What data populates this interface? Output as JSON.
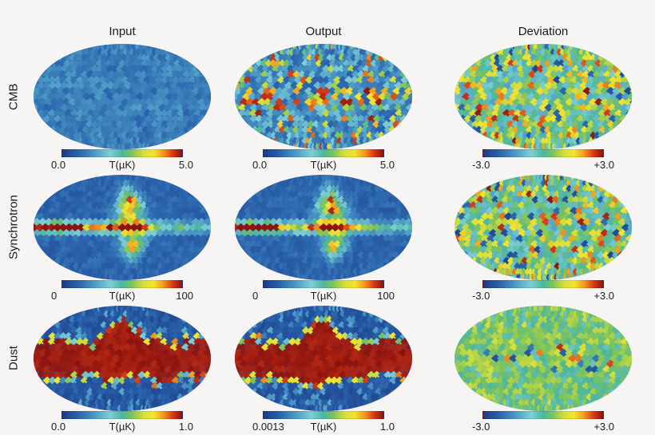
{
  "page": {
    "background": "#f6f5f4"
  },
  "header": {
    "columns": [
      "Input",
      "Output",
      "Deviation"
    ]
  },
  "rows": [
    {
      "label": "CMB"
    },
    {
      "label": "Synchrotron"
    },
    {
      "label": "Dust"
    }
  ],
  "colormap": {
    "name": "jet-like",
    "stops": [
      [
        0.0,
        "#1b3a86"
      ],
      [
        0.14,
        "#2b64ad"
      ],
      [
        0.28,
        "#4f9fc8"
      ],
      [
        0.4,
        "#7ecfd4"
      ],
      [
        0.5,
        "#4db6a0"
      ],
      [
        0.58,
        "#7cc35c"
      ],
      [
        0.68,
        "#d8df3a"
      ],
      [
        0.76,
        "#f4e32e"
      ],
      [
        0.84,
        "#f39c1c"
      ],
      [
        0.92,
        "#da3a16"
      ],
      [
        1.0,
        "#8c130e"
      ]
    ]
  },
  "chart_data": [
    {
      "row": "CMB",
      "column": "Input",
      "type": "heatmap",
      "projection": "mollweide",
      "pattern": "cmb-input",
      "seed": 1,
      "description": "Mostly uniform dark blue HEALPix map with subtle diamond-shaped fluctuations",
      "value_range": {
        "min": 0.0,
        "max": 5.0
      },
      "unit": "µK",
      "colorbar": {
        "min_label": "0.0",
        "center_label": "T(µK)",
        "max_label": "5.0"
      }
    },
    {
      "row": "CMB",
      "column": "Output",
      "type": "heatmap",
      "projection": "mollweide",
      "pattern": "cmb-output",
      "seed": 2,
      "description": "Blue map with scattered cyan pixels and yellow/orange/dark-red hot pixels concentrated along the equator",
      "value_range": {
        "min": 0.0,
        "max": 5.0
      },
      "unit": "µK",
      "colorbar": {
        "min_label": "0.0",
        "center_label": "T(µK)",
        "max_label": "5.0"
      }
    },
    {
      "row": "CMB",
      "column": "Deviation",
      "type": "heatmap",
      "projection": "mollweide",
      "pattern": "deviation",
      "seed": 3,
      "description": "Full-sky random residual noise dominated by green/teal with cyan, yellow, orange, red and blue pixels",
      "value_range": {
        "min": -3.0,
        "max": 3.0
      },
      "unit": "",
      "colorbar": {
        "min_label": "-3.0",
        "center_label": "",
        "max_label": "+3.0"
      }
    },
    {
      "row": "Synchrotron",
      "column": "Input",
      "type": "heatmap",
      "projection": "mollweide",
      "pattern": "synchrotron",
      "seed": 4,
      "description": "Dark blue sky with bright red/orange galactic plane, strongest at left edge and centre, plus a yellow/green north polar spur above centre and a blob below",
      "value_range": {
        "min": 0,
        "max": 100
      },
      "unit": "µK",
      "colorbar": {
        "min_label": "0",
        "center_label": "T(µK)",
        "max_label": "100"
      }
    },
    {
      "row": "Synchrotron",
      "column": "Output",
      "type": "heatmap",
      "projection": "mollweide",
      "pattern": "synchrotron",
      "seed": 5,
      "description": "Reconstruction nearly identical to the synchrotron input map",
      "value_range": {
        "min": 0,
        "max": 100
      },
      "unit": "µK",
      "colorbar": {
        "min_label": "0",
        "center_label": "T(µK)",
        "max_label": "100"
      }
    },
    {
      "row": "Synchrotron",
      "column": "Deviation",
      "type": "heatmap",
      "projection": "mollweide",
      "pattern": "deviation",
      "seed": 6,
      "description": "Full-sky random residual noise of cyan, green, yellow, orange, red and dark blue pixels",
      "value_range": {
        "min": -3.0,
        "max": 3.0
      },
      "unit": "",
      "colorbar": {
        "min_label": "-3.0",
        "center_label": "",
        "max_label": "+3.0"
      }
    },
    {
      "row": "Dust",
      "column": "Input",
      "type": "heatmap",
      "projection": "mollweide",
      "pattern": "dust",
      "seed": 7,
      "description": "Wide dark-red galactic band peaking at centre, fringed by mottled yellow/orange/cyan pixels, dark blue toward the poles",
      "value_range": {
        "min": 0.0,
        "max": 1.0
      },
      "unit": "µK",
      "colorbar": {
        "min_label": "0.0",
        "center_label": "T(µK)",
        "max_label": "1.0"
      }
    },
    {
      "row": "Dust",
      "column": "Output",
      "type": "heatmap",
      "projection": "mollweide",
      "pattern": "dust",
      "seed": 8,
      "description": "Reconstruction nearly identical to the dust input map",
      "value_range": {
        "min": 0.0013,
        "max": 1.0
      },
      "unit": "µK",
      "colorbar": {
        "min_label": "0.0013",
        "center_label": "T(µK)",
        "max_label": "1.0"
      }
    },
    {
      "row": "Dust",
      "column": "Deviation",
      "type": "heatmap",
      "projection": "mollweide",
      "pattern": "dust-deviation",
      "seed": 9,
      "description": "Mostly yellow-green and teal residual with scattered strong red, orange and dark blue outlier pixels along the equator",
      "value_range": {
        "min": -3.0,
        "max": 3.0
      },
      "unit": "",
      "colorbar": {
        "min_label": "-3.0",
        "center_label": "",
        "max_label": "+3.0"
      }
    }
  ]
}
